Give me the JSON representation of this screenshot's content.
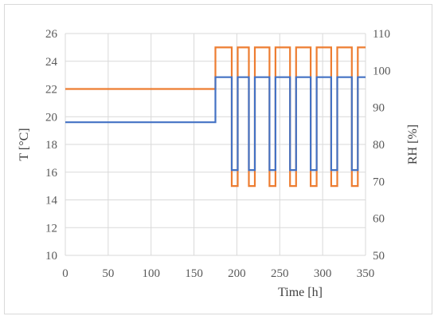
{
  "chart_data": {
    "type": "line",
    "title": "",
    "xlabel": "Time [h]",
    "ylabel": "T [°C]",
    "y2label": "RH [%]",
    "xlim": [
      0,
      350
    ],
    "ylim": [
      10,
      26
    ],
    "y2lim": [
      50,
      110
    ],
    "xticks": [
      0,
      50,
      100,
      150,
      200,
      250,
      300,
      350
    ],
    "yticks": [
      10,
      12,
      14,
      16,
      18,
      20,
      22,
      24,
      26
    ],
    "y2ticks": [
      50,
      60,
      70,
      80,
      90,
      100,
      110
    ],
    "grid": true,
    "legend": "none",
    "series": [
      {
        "axis": "left",
        "color": "#ed7d31",
        "x": [
          0,
          175,
          175,
          194,
          194,
          201,
          201,
          214,
          214,
          221,
          221,
          238,
          238,
          245,
          245,
          262,
          262,
          269,
          269,
          286,
          286,
          293,
          293,
          310,
          310,
          317,
          317,
          334,
          334,
          341,
          341,
          350
        ],
        "y": [
          22,
          22,
          25,
          25,
          15,
          15,
          25,
          25,
          15,
          15,
          25,
          25,
          15,
          15,
          25,
          25,
          15,
          15,
          25,
          25,
          15,
          15,
          25,
          25,
          15,
          15,
          25,
          25,
          15,
          15,
          25,
          25
        ]
      },
      {
        "axis": "left",
        "color": "#4472c4",
        "x": [
          0,
          175,
          175,
          194,
          194,
          201,
          201,
          214,
          214,
          221,
          221,
          238,
          238,
          245,
          245,
          262,
          262,
          269,
          269,
          286,
          286,
          293,
          293,
          310,
          310,
          317,
          317,
          334,
          334,
          341,
          341,
          350
        ],
        "y": [
          19.6,
          19.6,
          22.85,
          22.85,
          16.15,
          16.15,
          22.85,
          22.85,
          16.15,
          16.15,
          22.85,
          22.85,
          16.15,
          16.15,
          22.85,
          22.85,
          16.15,
          16.15,
          22.85,
          22.85,
          16.15,
          16.15,
          22.85,
          22.85,
          16.15,
          16.15,
          22.85,
          22.85,
          16.15,
          16.15,
          22.85,
          22.85
        ]
      }
    ]
  }
}
